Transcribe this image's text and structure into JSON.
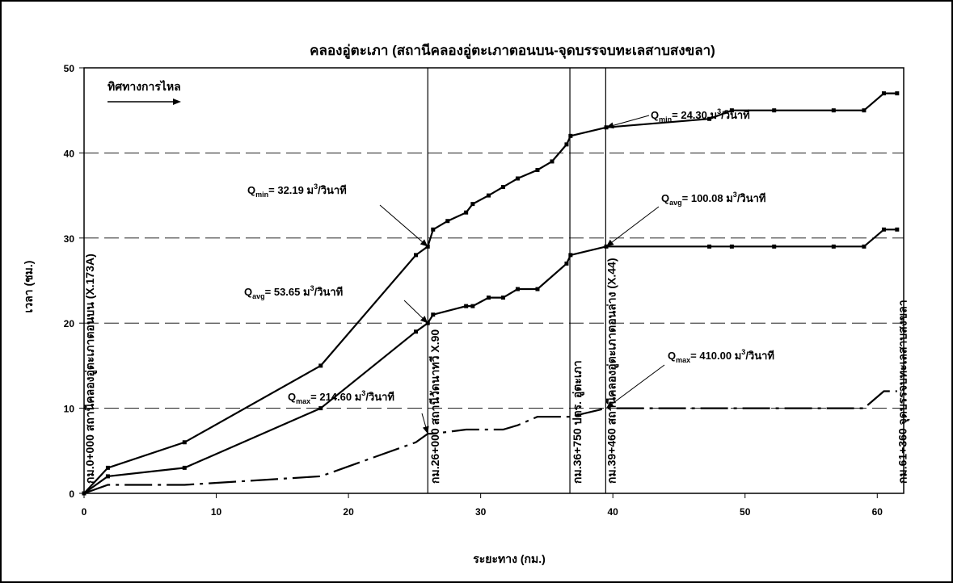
{
  "chart_data": {
    "type": "line",
    "title": "คลองอู่ตะเภา (สถานีคลองอู่ตะเภาตอนบน-จุดบรรจบทะเลสาบสงขลา)",
    "xlabel": "ระยะทาง (กม.)",
    "ylabel": "เวลา (ชม.)",
    "xlim": [
      0,
      62
    ],
    "ylim": [
      0,
      50
    ],
    "xticks": [
      0,
      10,
      20,
      30,
      40,
      50,
      60
    ],
    "yticks": [
      0,
      10,
      20,
      30,
      40,
      50
    ],
    "grid": "horizontal-dashed",
    "flow_label": "ทิศทางการไหล",
    "series": [
      {
        "label_main": "Q",
        "label_sub": "min",
        "label_text": "= 32.19 ม",
        "label_sup": "3",
        "label_unit": "/วินาที",
        "label2_main": "Q",
        "label2_sub": "min",
        "label2_text": "= 24.30 ม",
        "label2_sup": "3",
        "label2_unit": "/วินาที",
        "style": "solid",
        "x": [
          0,
          1.8,
          7.6,
          17.9,
          25.1,
          26,
          26.4,
          27.5,
          28.9,
          29.4,
          30.6,
          31.7,
          32.8,
          34.3,
          35.4,
          36.5,
          36.8,
          39.5,
          47.3,
          49,
          52.2,
          56.7,
          59,
          60.5,
          61.5
        ],
        "values": [
          0,
          3,
          6,
          15,
          28,
          29,
          31,
          32,
          33,
          34,
          35,
          36,
          37,
          38,
          39,
          41,
          42,
          43,
          44,
          45,
          45,
          45,
          45,
          47,
          47
        ]
      },
      {
        "label_main": "Q",
        "label_sub": "avg",
        "label_text": "= 53.65 ม",
        "label_sup": "3",
        "label_unit": "/วินาที",
        "label2_main": "Q",
        "label2_sub": "avg",
        "label2_text": "= 100.08 ม",
        "label2_sup": "3",
        "label2_unit": "/วินาที",
        "style": "solid",
        "x": [
          0,
          1.8,
          7.6,
          17.9,
          25.1,
          26,
          26.4,
          28.9,
          29.4,
          30.6,
          31.7,
          32.8,
          34.3,
          36.5,
          36.8,
          39.5,
          47.3,
          49,
          52.2,
          56.7,
          59,
          60.5,
          61.5
        ],
        "values": [
          0,
          2,
          3,
          10,
          19,
          20,
          21,
          22,
          22,
          23,
          23,
          24,
          24,
          27,
          28,
          29,
          29,
          29,
          29,
          29,
          29,
          31,
          31
        ]
      },
      {
        "label_main": "Q",
        "label_sub": "max",
        "label_text": "= 214.60 ม",
        "label_sup": "3",
        "label_unit": "/วินาที",
        "label2_main": "Q",
        "label2_sub": "max",
        "label2_text": "= 410.00 ม",
        "label2_sup": "3",
        "label2_unit": "/วินาที",
        "style": "dashed",
        "x": [
          0,
          1.8,
          7.6,
          17.9,
          25.1,
          26,
          26.4,
          28.9,
          29.4,
          30.6,
          31.7,
          32.8,
          34.3,
          36.5,
          36.8,
          39.5,
          47.3,
          49,
          52.2,
          56.7,
          59,
          60.5,
          61.5
        ],
        "values": [
          0,
          1,
          1,
          2,
          6,
          7,
          7,
          7.5,
          7.5,
          7.5,
          7.5,
          8,
          9,
          9,
          9,
          10,
          10,
          10,
          10,
          10,
          10,
          12,
          12
        ]
      }
    ],
    "stations": [
      {
        "x": 0,
        "label": "กม.0+000 สถานีคลองอู่ตะเภาตอนบน (X.173A)"
      },
      {
        "x": 26,
        "label": "กม.26+000 สถานีวัดนาทวี X.90"
      },
      {
        "x": 36.75,
        "label": "กม.36+750 ปตร. อู่ตะเภา"
      },
      {
        "x": 39.46,
        "label": "กม.39+460 สถานีคลองอู่ตะเภาตอนล่าง (X.44)"
      },
      {
        "x": 61.36,
        "label": "กม.61+360 จุดบรรจบทะเลสาบสงขลา"
      }
    ]
  }
}
